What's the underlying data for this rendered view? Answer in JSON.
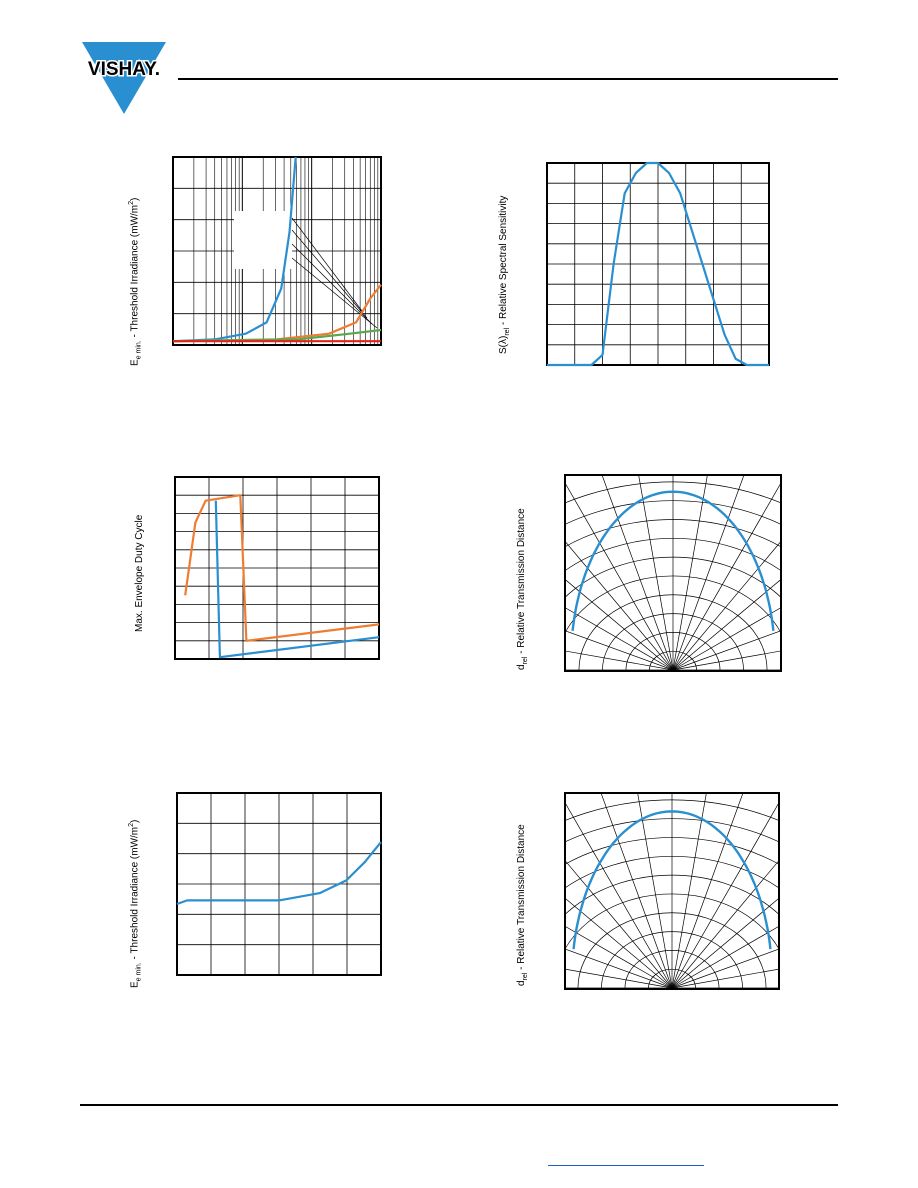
{
  "brand": {
    "name": "VISHAY",
    "suffix": ".",
    "triangle_color": "#2a8fd1"
  },
  "colors": {
    "blue": "#2a8fd1",
    "orange": "#ef7c33",
    "green": "#5aa84b",
    "red": "#e2231a"
  },
  "chart_data": [
    {
      "id": "threshold-vs-frequency",
      "type": "line",
      "ylabel_parts": [
        "E",
        "e min.",
        " - Threshold Irradiance (mW/m",
        "2",
        ")"
      ],
      "xscale": "log",
      "series": [
        {
          "color": "blue",
          "points": [
            [
              0.0,
              0.02
            ],
            [
              0.2,
              0.03
            ],
            [
              0.35,
              0.06
            ],
            [
              0.45,
              0.12
            ],
            [
              0.52,
              0.3
            ],
            [
              0.56,
              0.6
            ],
            [
              0.59,
              1.0
            ]
          ]
        },
        {
          "color": "orange",
          "points": [
            [
              0.0,
              0.02
            ],
            [
              0.5,
              0.03
            ],
            [
              0.75,
              0.06
            ],
            [
              0.88,
              0.12
            ],
            [
              0.95,
              0.25
            ],
            [
              1.0,
              0.32
            ]
          ]
        },
        {
          "color": "green",
          "points": [
            [
              0.0,
              0.02
            ],
            [
              0.6,
              0.03
            ],
            [
              0.85,
              0.06
            ],
            [
              1.0,
              0.08
            ]
          ]
        },
        {
          "color": "red",
          "points": [
            [
              0.0,
              0.02
            ],
            [
              1.0,
              0.02
            ]
          ]
        }
      ]
    },
    {
      "id": "spectral-sensitivity",
      "type": "line",
      "ylabel_parts": [
        "S(λ)",
        "rel",
        " - Relative Spectral Sensitivity"
      ],
      "series": [
        {
          "color": "blue",
          "points": [
            [
              0.0,
              0.0
            ],
            [
              0.2,
              0.0
            ],
            [
              0.25,
              0.05
            ],
            [
              0.3,
              0.5
            ],
            [
              0.35,
              0.85
            ],
            [
              0.4,
              0.95
            ],
            [
              0.45,
              1.0
            ],
            [
              0.5,
              1.0
            ],
            [
              0.55,
              0.95
            ],
            [
              0.6,
              0.85
            ],
            [
              0.7,
              0.5
            ],
            [
              0.8,
              0.15
            ],
            [
              0.85,
              0.03
            ],
            [
              0.9,
              0.0
            ],
            [
              1.0,
              0.0
            ]
          ]
        }
      ]
    },
    {
      "id": "max-envelope-duty-cycle",
      "type": "line",
      "ylabel": "Max. Envelope Duty Cycle",
      "series": [
        {
          "color": "orange",
          "points": [
            [
              0.05,
              0.35
            ],
            [
              0.1,
              0.75
            ],
            [
              0.15,
              0.87
            ],
            [
              0.32,
              0.9
            ],
            [
              0.35,
              0.1
            ],
            [
              1.0,
              0.19
            ]
          ]
        },
        {
          "color": "blue",
          "points": [
            [
              0.2,
              0.87
            ],
            [
              0.22,
              0.01
            ],
            [
              1.0,
              0.12
            ]
          ]
        }
      ]
    },
    {
      "id": "rel-transmission-distance-1",
      "type": "polar",
      "ylabel_parts": [
        "d",
        "rel",
        " - Relative Transmission Distance"
      ]
    },
    {
      "id": "threshold-vs-temperature",
      "type": "line",
      "ylabel_parts": [
        "E",
        "e min.",
        " - Threshold Irradiance (mW/m",
        "2",
        ")"
      ],
      "series": [
        {
          "color": "blue",
          "points": [
            [
              0.0,
              0.39
            ],
            [
              0.05,
              0.41
            ],
            [
              0.3,
              0.41
            ],
            [
              0.5,
              0.41
            ],
            [
              0.7,
              0.45
            ],
            [
              0.83,
              0.52
            ],
            [
              0.92,
              0.62
            ],
            [
              1.0,
              0.73
            ]
          ]
        }
      ]
    },
    {
      "id": "rel-transmission-distance-2",
      "type": "polar",
      "ylabel_parts": [
        "d",
        "rel",
        " - Relative Transmission Distance"
      ]
    }
  ]
}
